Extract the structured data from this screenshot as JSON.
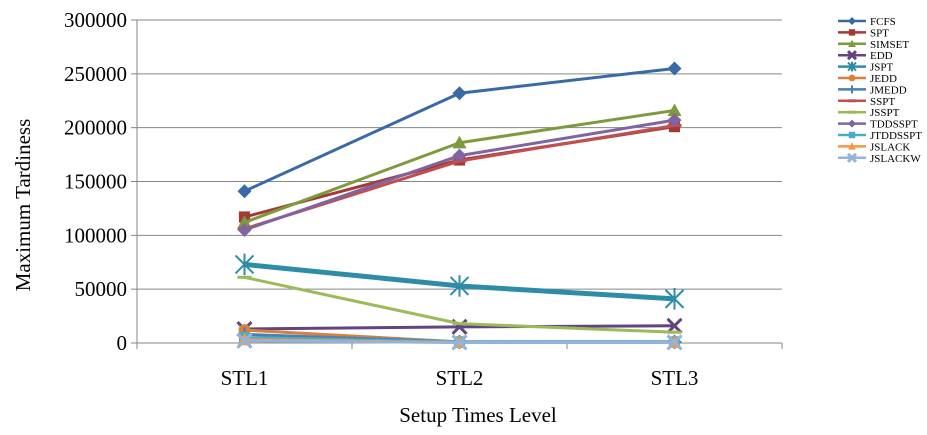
{
  "chart_data": {
    "type": "line",
    "title": "",
    "xlabel": "Setup Times Level",
    "ylabel": "Maximum Tardiness",
    "categories": [
      "STL1",
      "STL2",
      "STL3"
    ],
    "ylim": [
      0,
      300000
    ],
    "yticks": [
      0,
      50000,
      100000,
      150000,
      200000,
      250000,
      300000
    ],
    "grid": "horizontal",
    "legend_position": "right",
    "series": [
      {
        "name": "FCFS",
        "values": [
          141000,
          232000,
          255000
        ],
        "color": "#3A6AA6",
        "marker": "diamond"
      },
      {
        "name": "SPT",
        "values": [
          117000,
          170000,
          201000
        ],
        "color": "#A23A36",
        "marker": "square"
      },
      {
        "name": "SIMSET",
        "values": [
          112000,
          186000,
          216000
        ],
        "color": "#7E9A3D",
        "marker": "triangle"
      },
      {
        "name": "EDD",
        "values": [
          13000,
          15000,
          16000
        ],
        "color": "#624483",
        "marker": "x"
      },
      {
        "name": "JSPT",
        "values": [
          73000,
          53000,
          41000
        ],
        "color": "#2E8DA6",
        "marker": "star"
      },
      {
        "name": "JEDD",
        "values": [
          12000,
          1000,
          1000
        ],
        "color": "#D8813A",
        "marker": "circle"
      },
      {
        "name": "JMEDD",
        "values": [
          8000,
          1000,
          1000
        ],
        "color": "#4A7EBB",
        "marker": "plus"
      },
      {
        "name": "SSPT",
        "values": [
          106000,
          169000,
          202000
        ],
        "color": "#C0504D",
        "marker": "dash"
      },
      {
        "name": "JSSPT",
        "values": [
          61000,
          18000,
          10000
        ],
        "color": "#9BBB59",
        "marker": "dash"
      },
      {
        "name": "TDDSSPT",
        "values": [
          105000,
          174000,
          207000
        ],
        "color": "#8064A2",
        "marker": "diamond"
      },
      {
        "name": "JTDDSSPT",
        "values": [
          5000,
          1000,
          1000
        ],
        "color": "#4BACC6",
        "marker": "square"
      },
      {
        "name": "JSLACK",
        "values": [
          3000,
          500,
          500
        ],
        "color": "#F79646",
        "marker": "triangle"
      },
      {
        "name": "JSLACKW",
        "values": [
          2000,
          500,
          500
        ],
        "color": "#95B3D7",
        "marker": "x"
      }
    ]
  }
}
